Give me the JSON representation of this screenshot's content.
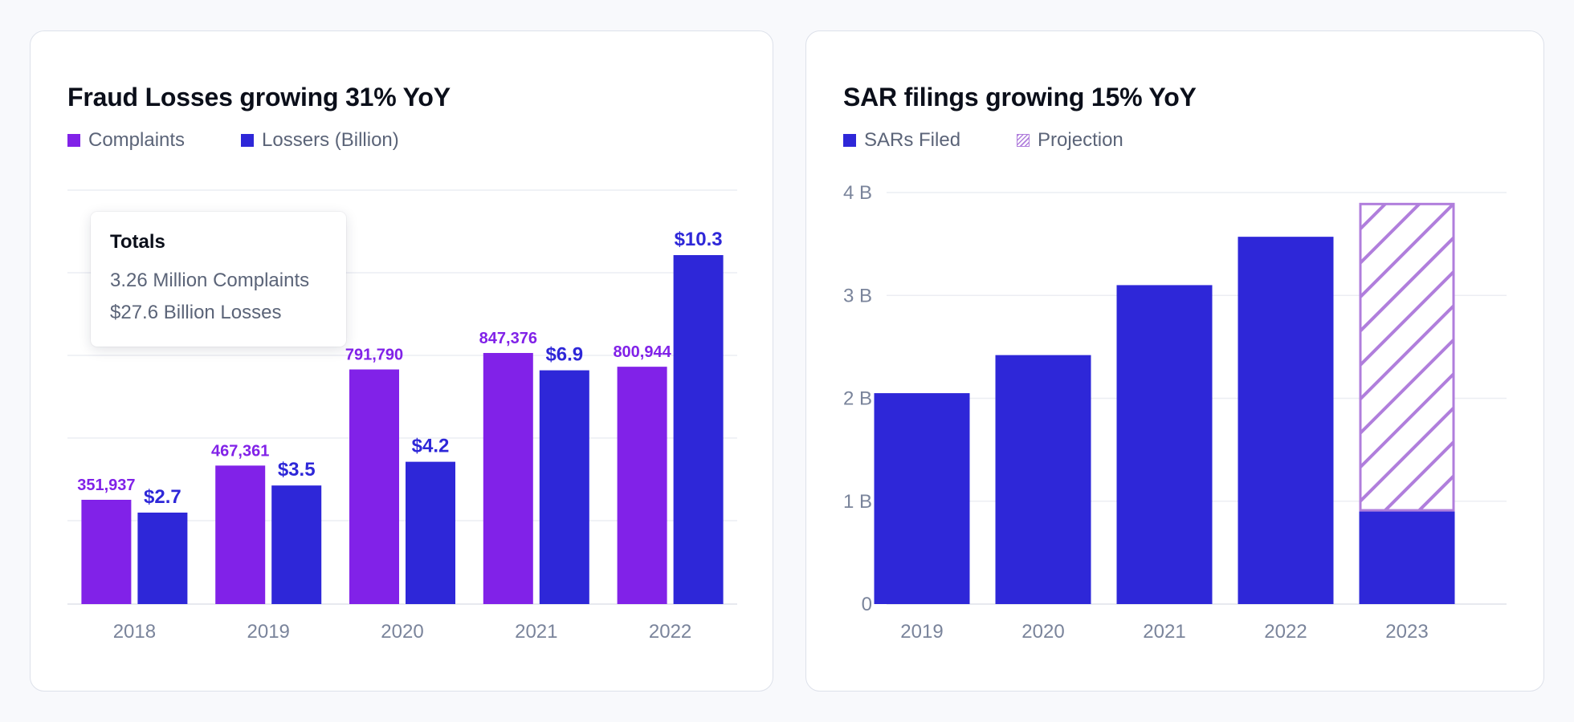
{
  "colors": {
    "complaints": "#8122e8",
    "losses": "#2e27d8",
    "projection": "#b07edc",
    "axis_text": "#7a849b",
    "grid": "#eceef3"
  },
  "fraud_card": {
    "title": "Fraud Losses growing 31% YoY",
    "legend": {
      "complaints": "Complaints",
      "losses": "Lossers (Billion)"
    },
    "tooltip": {
      "title": "Totals",
      "line1": "3.26 Million Complaints",
      "line2": "$27.6 Billion Losses"
    }
  },
  "sar_card": {
    "title": "SAR filings growing 15% YoY",
    "legend": {
      "filed": "SARs Filed",
      "projection": "Projection"
    }
  },
  "chart_data": [
    {
      "type": "bar",
      "title": "Fraud Losses growing 31% YoY",
      "categories": [
        "2018",
        "2019",
        "2020",
        "2021",
        "2022"
      ],
      "series": [
        {
          "name": "Complaints",
          "values": [
            351937,
            467361,
            791790,
            847376,
            800944
          ],
          "labels": [
            "351,937",
            "467,361",
            "791,790",
            "847,376",
            "800,944"
          ]
        },
        {
          "name": "Lossers (Billion)",
          "values": [
            2.7,
            3.5,
            4.2,
            6.9,
            10.3
          ],
          "labels": [
            "$2.7",
            "$3.5",
            "$4.2",
            "$6.9",
            "$10.3"
          ]
        }
      ],
      "xlabel": "",
      "ylabel": "",
      "grid": true
    },
    {
      "type": "bar",
      "title": "SAR filings growing 15% YoY",
      "categories": [
        "2019",
        "2020",
        "2021",
        "2022",
        "2023"
      ],
      "series": [
        {
          "name": "SARs Filed",
          "values": [
            2.05,
            2.42,
            3.1,
            3.57,
            0.9
          ]
        },
        {
          "name": "Projection",
          "values": [
            0,
            0,
            0,
            0,
            3.0
          ]
        }
      ],
      "yticks": [
        0,
        1,
        2,
        3,
        4
      ],
      "ytick_labels": [
        "0",
        "1 B",
        "2 B",
        "3 B",
        "4 B"
      ],
      "ylim": [
        0,
        4
      ],
      "xlabel": "",
      "ylabel": "",
      "grid": true
    }
  ]
}
